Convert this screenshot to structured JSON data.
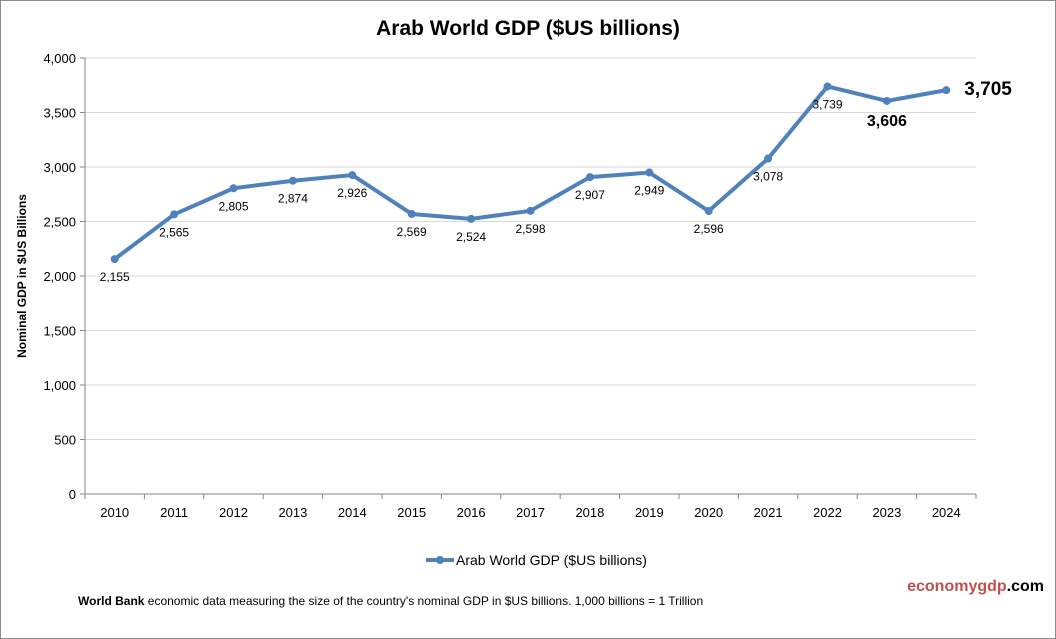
{
  "chart_data": {
    "type": "line",
    "title": "Arab World GDP ($US billions)",
    "ylabel": "Nominal GDP in $US  Billions",
    "xlabel": "",
    "categories": [
      "2010",
      "2011",
      "2012",
      "2013",
      "2014",
      "2015",
      "2016",
      "2017",
      "2018",
      "2019",
      "2020",
      "2021",
      "2022",
      "2023",
      "2024"
    ],
    "series": [
      {
        "name": "Arab World GDP ($US billions)",
        "values": [
          2155,
          2565,
          2805,
          2874,
          2926,
          2569,
          2524,
          2598,
          2907,
          2949,
          2596,
          3078,
          3739,
          3606,
          3705
        ],
        "color": "#4f81bd"
      }
    ],
    "data_labels": [
      "2,155",
      "2,565",
      "2,805",
      "2,874",
      "2,926",
      "2,569",
      "2,524",
      "2,598",
      "2,907",
      "2,949",
      "2,596",
      "3,078",
      "3,739",
      "3,606",
      "3,705"
    ],
    "ylim": [
      0,
      4000
    ],
    "yticks": [
      "0",
      "500",
      "1,000",
      "1,500",
      "2,000",
      "2,500",
      "3,000",
      "3,500",
      "4,000"
    ],
    "grid": true,
    "legend_position": "bottom"
  },
  "footer": {
    "source_bold": "World Bank",
    "source_text": " economic data  measuring the size of the country's nominal  GDP in $US billions. 1,000 billions = 1 Trillion"
  },
  "brand": {
    "part1": "economygdp",
    "part2": ".com",
    "color1": "#c0504d",
    "color2": "#000000"
  }
}
